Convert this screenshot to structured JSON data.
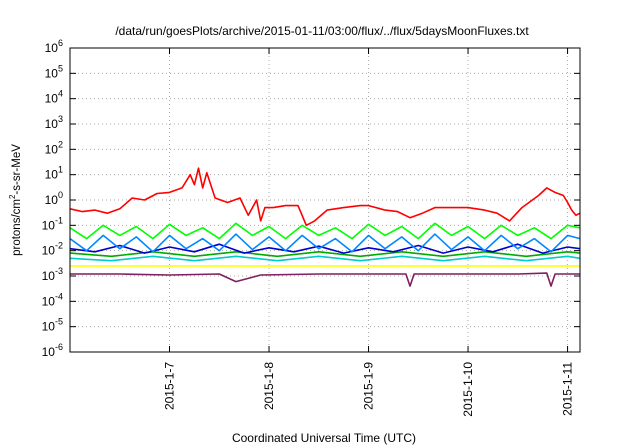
{
  "chart_data": {
    "type": "line",
    "title": "/data/run/goesPlots/archive/2015-01-11/03:00/flux/../flux/5daysMoonFluxes.txt",
    "xlabel": "Coordinated Universal Time (UTC)",
    "ylabel": {
      "prefix": "protons/cm",
      "sup": "2",
      "suffix": "-s-sr-MeV"
    },
    "yscale": "log",
    "ylim": [
      1e-06,
      1000000.0
    ],
    "xlim": [
      "2015-01-06T00:00",
      "2015-01-11T03:00"
    ],
    "grid": true,
    "legend": "none",
    "y_ticks": [
      {
        "base": "10",
        "exp": "-6"
      },
      {
        "base": "10",
        "exp": "-5"
      },
      {
        "base": "10",
        "exp": "-4"
      },
      {
        "base": "10",
        "exp": "-3"
      },
      {
        "base": "10",
        "exp": "-2"
      },
      {
        "base": "10",
        "exp": "-1"
      },
      {
        "base": "10",
        "exp": "0"
      },
      {
        "base": "10",
        "exp": "1"
      },
      {
        "base": "10",
        "exp": "2"
      },
      {
        "base": "10",
        "exp": "3"
      },
      {
        "base": "10",
        "exp": "4"
      },
      {
        "base": "10",
        "exp": "5"
      },
      {
        "base": "10",
        "exp": "6"
      }
    ],
    "x_ticks": [
      {
        "label": "2015-1-7",
        "date": "2015-01-07"
      },
      {
        "label": "2015-1-8",
        "date": "2015-01-08"
      },
      {
        "label": "2015-1-9",
        "date": "2015-01-09"
      },
      {
        "label": "2015-1-10",
        "date": "2015-01-10"
      },
      {
        "label": "2015-1-11",
        "date": "2015-01-11"
      }
    ],
    "series": [
      {
        "color": "#7f1f5f",
        "points": [
          [
            "2015-01-06T00:00",
            0.0012
          ],
          [
            "2015-01-06T12:00",
            0.0012
          ],
          [
            "2015-01-07T00:00",
            0.0011
          ],
          [
            "2015-01-07T12:00",
            0.0012
          ],
          [
            "2015-01-07T16:00",
            0.0006
          ],
          [
            "2015-01-07T22:00",
            0.0011
          ],
          [
            "2015-01-08T12:00",
            0.0012
          ],
          [
            "2015-01-09T00:00",
            0.0012
          ],
          [
            "2015-01-09T09:00",
            0.0012
          ],
          [
            "2015-01-09T10:00",
            0.0004
          ],
          [
            "2015-01-09T11:00",
            0.0012
          ],
          [
            "2015-01-10T00:00",
            0.0012
          ],
          [
            "2015-01-10T12:00",
            0.0012
          ],
          [
            "2015-01-10T19:00",
            0.0013
          ],
          [
            "2015-01-10T20:00",
            0.0004
          ],
          [
            "2015-01-10T21:00",
            0.0012
          ],
          [
            "2015-01-11T03:00",
            0.0012
          ]
        ]
      },
      {
        "color": "#ffff00",
        "points": [
          [
            "2015-01-06T00:00",
            0.0025
          ],
          [
            "2015-01-06T12:00",
            0.0025
          ],
          [
            "2015-01-07T00:00",
            0.0025
          ],
          [
            "2015-01-07T12:00",
            0.0025
          ],
          [
            "2015-01-08T00:00",
            0.0025
          ],
          [
            "2015-01-08T12:00",
            0.0025
          ],
          [
            "2015-01-09T00:00",
            0.0025
          ],
          [
            "2015-01-09T12:00",
            0.0025
          ],
          [
            "2015-01-10T00:00",
            0.0025
          ],
          [
            "2015-01-10T12:00",
            0.0025
          ],
          [
            "2015-01-11T03:00",
            0.0025
          ]
        ]
      },
      {
        "color": "#00cccc",
        "points": [
          [
            "2015-01-06T00:00",
            0.005
          ],
          [
            "2015-01-06T10:00",
            0.004
          ],
          [
            "2015-01-06T20:00",
            0.006
          ],
          [
            "2015-01-07T06:00",
            0.004
          ],
          [
            "2015-01-07T16:00",
            0.006
          ],
          [
            "2015-01-08T02:00",
            0.004
          ],
          [
            "2015-01-08T12:00",
            0.006
          ],
          [
            "2015-01-08T22:00",
            0.004
          ],
          [
            "2015-01-09T08:00",
            0.006
          ],
          [
            "2015-01-09T18:00",
            0.004
          ],
          [
            "2015-01-10T04:00",
            0.006
          ],
          [
            "2015-01-10T14:00",
            0.004
          ],
          [
            "2015-01-11T00:00",
            0.006
          ],
          [
            "2015-01-11T03:00",
            0.005
          ]
        ]
      },
      {
        "color": "#00aa00",
        "points": [
          [
            "2015-01-06T00:00",
            0.008
          ],
          [
            "2015-01-06T10:00",
            0.006
          ],
          [
            "2015-01-06T20:00",
            0.009
          ],
          [
            "2015-01-07T06:00",
            0.006
          ],
          [
            "2015-01-07T16:00",
            0.009
          ],
          [
            "2015-01-08T02:00",
            0.006
          ],
          [
            "2015-01-08T12:00",
            0.009
          ],
          [
            "2015-01-08T22:00",
            0.006
          ],
          [
            "2015-01-09T08:00",
            0.009
          ],
          [
            "2015-01-09T18:00",
            0.006
          ],
          [
            "2015-01-10T04:00",
            0.009
          ],
          [
            "2015-01-10T14:00",
            0.006
          ],
          [
            "2015-01-11T00:00",
            0.009
          ],
          [
            "2015-01-11T03:00",
            0.008
          ]
        ]
      },
      {
        "color": "#0000cc",
        "points": [
          [
            "2015-01-06T00:00",
            0.012
          ],
          [
            "2015-01-06T06:00",
            0.009
          ],
          [
            "2015-01-06T12:00",
            0.016
          ],
          [
            "2015-01-06T18:00",
            0.008
          ],
          [
            "2015-01-07T00:00",
            0.014
          ],
          [
            "2015-01-07T06:00",
            0.009
          ],
          [
            "2015-01-07T12:00",
            0.018
          ],
          [
            "2015-01-07T18:00",
            0.008
          ],
          [
            "2015-01-08T00:00",
            0.013
          ],
          [
            "2015-01-08T06:00",
            0.009
          ],
          [
            "2015-01-08T12:00",
            0.015
          ],
          [
            "2015-01-08T18:00",
            0.008
          ],
          [
            "2015-01-09T00:00",
            0.013
          ],
          [
            "2015-01-09T06:00",
            0.009
          ],
          [
            "2015-01-09T12:00",
            0.016
          ],
          [
            "2015-01-09T18:00",
            0.008
          ],
          [
            "2015-01-10T00:00",
            0.014
          ],
          [
            "2015-01-10T06:00",
            0.009
          ],
          [
            "2015-01-10T12:00",
            0.018
          ],
          [
            "2015-01-10T18:00",
            0.008
          ],
          [
            "2015-01-11T00:00",
            0.014
          ],
          [
            "2015-01-11T03:00",
            0.012
          ]
        ]
      },
      {
        "color": "#0088ff",
        "points": [
          [
            "2015-01-06T00:00",
            0.03
          ],
          [
            "2015-01-06T04:00",
            0.01
          ],
          [
            "2015-01-06T08:00",
            0.04
          ],
          [
            "2015-01-06T12:00",
            0.012
          ],
          [
            "2015-01-06T16:00",
            0.035
          ],
          [
            "2015-01-06T20:00",
            0.009
          ],
          [
            "2015-01-07T00:00",
            0.04
          ],
          [
            "2015-01-07T04:00",
            0.012
          ],
          [
            "2015-01-07T08:00",
            0.03
          ],
          [
            "2015-01-07T12:00",
            0.01
          ],
          [
            "2015-01-07T16:00",
            0.045
          ],
          [
            "2015-01-07T20:00",
            0.011
          ],
          [
            "2015-01-08T00:00",
            0.035
          ],
          [
            "2015-01-08T04:00",
            0.01
          ],
          [
            "2015-01-08T08:00",
            0.04
          ],
          [
            "2015-01-08T12:00",
            0.012
          ],
          [
            "2015-01-08T16:00",
            0.03
          ],
          [
            "2015-01-08T20:00",
            0.009
          ],
          [
            "2015-01-09T00:00",
            0.04
          ],
          [
            "2015-01-09T04:00",
            0.012
          ],
          [
            "2015-01-09T08:00",
            0.035
          ],
          [
            "2015-01-09T12:00",
            0.01
          ],
          [
            "2015-01-09T16:00",
            0.045
          ],
          [
            "2015-01-09T20:00",
            0.011
          ],
          [
            "2015-01-10T00:00",
            0.035
          ],
          [
            "2015-01-10T04:00",
            0.01
          ],
          [
            "2015-01-10T08:00",
            0.04
          ],
          [
            "2015-01-10T12:00",
            0.012
          ],
          [
            "2015-01-10T16:00",
            0.03
          ],
          [
            "2015-01-10T20:00",
            0.009
          ],
          [
            "2015-01-11T00:00",
            0.04
          ],
          [
            "2015-01-11T03:00",
            0.03
          ]
        ]
      },
      {
        "color": "#00ff00",
        "points": [
          [
            "2015-01-06T00:00",
            0.08
          ],
          [
            "2015-01-06T04:00",
            0.03
          ],
          [
            "2015-01-06T08:00",
            0.1
          ],
          [
            "2015-01-06T12:00",
            0.04
          ],
          [
            "2015-01-06T16:00",
            0.09
          ],
          [
            "2015-01-06T20:00",
            0.03
          ],
          [
            "2015-01-07T00:00",
            0.11
          ],
          [
            "2015-01-07T04:00",
            0.04
          ],
          [
            "2015-01-07T08:00",
            0.08
          ],
          [
            "2015-01-07T12:00",
            0.03
          ],
          [
            "2015-01-07T16:00",
            0.12
          ],
          [
            "2015-01-07T20:00",
            0.04
          ],
          [
            "2015-01-08T00:00",
            0.09
          ],
          [
            "2015-01-08T04:00",
            0.03
          ],
          [
            "2015-01-08T08:00",
            0.1
          ],
          [
            "2015-01-08T12:00",
            0.04
          ],
          [
            "2015-01-08T16:00",
            0.08
          ],
          [
            "2015-01-08T20:00",
            0.03
          ],
          [
            "2015-01-09T00:00",
            0.11
          ],
          [
            "2015-01-09T04:00",
            0.04
          ],
          [
            "2015-01-09T08:00",
            0.09
          ],
          [
            "2015-01-09T12:00",
            0.03
          ],
          [
            "2015-01-09T16:00",
            0.12
          ],
          [
            "2015-01-09T20:00",
            0.04
          ],
          [
            "2015-01-10T00:00",
            0.09
          ],
          [
            "2015-01-10T04:00",
            0.03
          ],
          [
            "2015-01-10T08:00",
            0.1
          ],
          [
            "2015-01-10T12:00",
            0.04
          ],
          [
            "2015-01-10T16:00",
            0.08
          ],
          [
            "2015-01-10T20:00",
            0.03
          ],
          [
            "2015-01-11T00:00",
            0.1
          ],
          [
            "2015-01-11T03:00",
            0.08
          ]
        ]
      },
      {
        "color": "#ff0000",
        "points": [
          [
            "2015-01-06T00:00",
            0.45
          ],
          [
            "2015-01-06T03:00",
            0.35
          ],
          [
            "2015-01-06T06:00",
            0.4
          ],
          [
            "2015-01-06T09:00",
            0.3
          ],
          [
            "2015-01-06T12:00",
            0.45
          ],
          [
            "2015-01-06T15:00",
            1.2
          ],
          [
            "2015-01-06T18:00",
            1.0
          ],
          [
            "2015-01-06T21:00",
            1.8
          ],
          [
            "2015-01-07T00:00",
            2.0
          ],
          [
            "2015-01-07T03:00",
            3.0
          ],
          [
            "2015-01-07T05:00",
            10
          ],
          [
            "2015-01-07T06:00",
            4
          ],
          [
            "2015-01-07T07:00",
            18
          ],
          [
            "2015-01-07T08:00",
            3
          ],
          [
            "2015-01-07T09:00",
            12
          ],
          [
            "2015-01-07T11:00",
            1.2
          ],
          [
            "2015-01-07T14:00",
            0.8
          ],
          [
            "2015-01-07T17:00",
            1.2
          ],
          [
            "2015-01-07T19:00",
            0.25
          ],
          [
            "2015-01-07T21:00",
            1.0
          ],
          [
            "2015-01-07T22:00",
            0.15
          ],
          [
            "2015-01-07T23:00",
            0.5
          ],
          [
            "2015-01-08T01:00",
            0.5
          ],
          [
            "2015-01-08T04:00",
            0.6
          ],
          [
            "2015-01-08T07:00",
            0.6
          ],
          [
            "2015-01-08T09:00",
            0.1
          ],
          [
            "2015-01-08T11:00",
            0.15
          ],
          [
            "2015-01-08T14:00",
            0.4
          ],
          [
            "2015-01-08T18:00",
            0.5
          ],
          [
            "2015-01-08T22:00",
            0.6
          ],
          [
            "2015-01-09T00:00",
            0.6
          ],
          [
            "2015-01-09T04:00",
            0.4
          ],
          [
            "2015-01-09T07:00",
            0.35
          ],
          [
            "2015-01-09T10:00",
            0.2
          ],
          [
            "2015-01-09T13:00",
            0.3
          ],
          [
            "2015-01-09T16:00",
            0.5
          ],
          [
            "2015-01-09T20:00",
            0.5
          ],
          [
            "2015-01-10T00:00",
            0.5
          ],
          [
            "2015-01-10T04:00",
            0.4
          ],
          [
            "2015-01-10T07:00",
            0.3
          ],
          [
            "2015-01-10T10:00",
            0.15
          ],
          [
            "2015-01-10T13:00",
            0.5
          ],
          [
            "2015-01-10T17:00",
            1.5
          ],
          [
            "2015-01-10T19:00",
            3
          ],
          [
            "2015-01-10T21:00",
            2
          ],
          [
            "2015-01-10T23:00",
            1.5
          ],
          [
            "2015-01-11T00:00",
            0.8
          ],
          [
            "2015-01-11T01:00",
            0.4
          ],
          [
            "2015-01-11T02:00",
            0.25
          ],
          [
            "2015-01-11T03:00",
            0.3
          ]
        ]
      }
    ]
  }
}
